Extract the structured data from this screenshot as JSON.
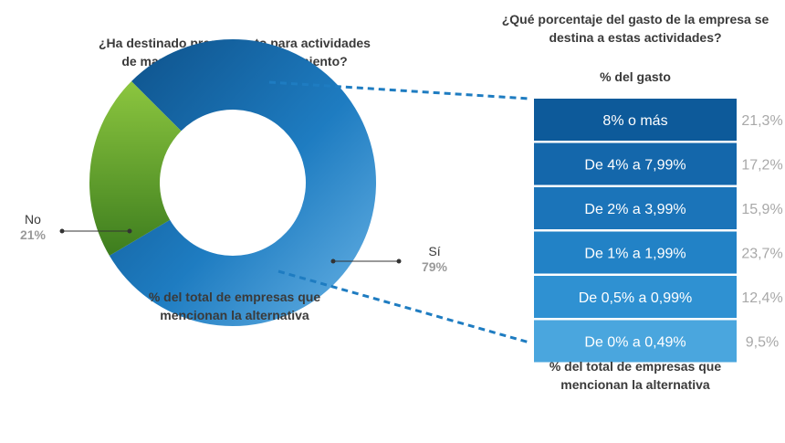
{
  "left_panel": {
    "question": [
      "¿Ha destinado presupuesto para actividades",
      "de mantenimiento del conocimiento?"
    ],
    "caption": [
      "% del total de empresas que",
      "mencionan la alternativa"
    ]
  },
  "right_panel": {
    "question": [
      "¿Qué porcentaje del gasto de la empresa se",
      "destina a estas actividades?"
    ],
    "subheader": "% del gasto",
    "caption": [
      "% del total de empresas que",
      "mencionan la alternativa"
    ]
  },
  "chart_data": [
    {
      "type": "pie",
      "donut": true,
      "slices": [
        {
          "label": "Sí",
          "value": 79,
          "display": "79%",
          "color": "#1e7cc1"
        },
        {
          "label": "No",
          "value": 21,
          "display": "21%",
          "color": "#6cb33a"
        }
      ]
    },
    {
      "type": "table",
      "categories": [
        "8% o más",
        "De 4% a 7,99%",
        "De 2% a 3,99%",
        "De 1% a 1,99%",
        "De 0,5% a 0,99%",
        "De 0% a 0,49%"
      ],
      "values": [
        21.3,
        17.2,
        15.9,
        23.7,
        12.4,
        9.5
      ],
      "value_labels": [
        "21,3%",
        "17,2%",
        "15,9%",
        "23,7%",
        "12,4%",
        "9,5%"
      ],
      "colors": [
        "#0d5a9a",
        "#1467ab",
        "#1b74b9",
        "#2282c6",
        "#2f91d2",
        "#4aa6de"
      ]
    }
  ]
}
